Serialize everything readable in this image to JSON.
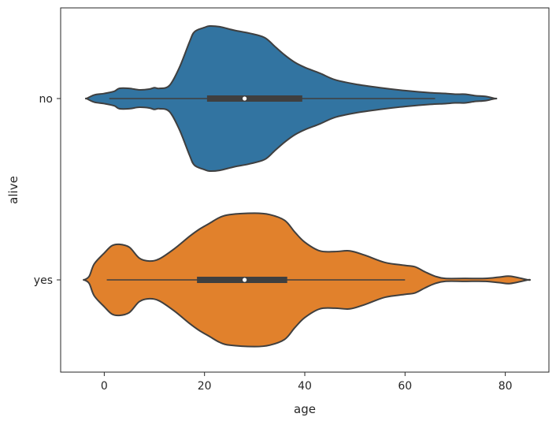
{
  "chart_data": {
    "type": "violin",
    "orientation": "horizontal",
    "title": "",
    "xlabel": "age",
    "ylabel": "alive",
    "xlim": [
      -8.7,
      88.7
    ],
    "xticks": [
      0,
      20,
      40,
      60,
      80
    ],
    "xtick_labels": [
      "0",
      "20",
      "40",
      "60",
      "80"
    ],
    "categories": [
      "no",
      "yes"
    ],
    "grid": false,
    "legend": "none",
    "series": [
      {
        "category": "no",
        "color": "#3274a1",
        "edge_color": "#3f3f3f",
        "box": {
          "whisker_low": 1,
          "q1": 20.5,
          "median": 28,
          "q3": 39.5,
          "whisker_high": 66
        },
        "density_range": [
          -3.5,
          78
        ],
        "density_profile": [
          [
            -3.5,
            0.0
          ],
          [
            -2,
            0.05
          ],
          [
            0,
            0.07
          ],
          [
            2,
            0.1
          ],
          [
            3,
            0.14
          ],
          [
            5,
            0.14
          ],
          [
            7,
            0.12
          ],
          [
            9,
            0.13
          ],
          [
            10,
            0.15
          ],
          [
            11,
            0.14
          ],
          [
            13,
            0.18
          ],
          [
            15,
            0.43
          ],
          [
            17,
            0.78
          ],
          [
            18,
            0.92
          ],
          [
            20,
            0.98
          ],
          [
            21,
            1.0
          ],
          [
            23,
            0.99
          ],
          [
            26,
            0.94
          ],
          [
            29,
            0.9
          ],
          [
            32,
            0.84
          ],
          [
            34,
            0.72
          ],
          [
            36,
            0.6
          ],
          [
            38,
            0.5
          ],
          [
            40,
            0.43
          ],
          [
            43,
            0.35
          ],
          [
            46,
            0.26
          ],
          [
            50,
            0.2
          ],
          [
            55,
            0.15
          ],
          [
            60,
            0.11
          ],
          [
            65,
            0.08
          ],
          [
            68,
            0.07
          ],
          [
            70,
            0.06
          ],
          [
            72,
            0.06
          ],
          [
            74,
            0.04
          ],
          [
            76,
            0.03
          ],
          [
            78,
            0.0
          ]
        ]
      },
      {
        "category": "yes",
        "color": "#e1812c",
        "edge_color": "#3f3f3f",
        "box": {
          "whisker_low": 0.5,
          "q1": 18.5,
          "median": 28,
          "q3": 36.5,
          "whisker_high": 60
        },
        "density_range": [
          -4,
          84.5
        ],
        "density_profile": [
          [
            -4,
            0.0
          ],
          [
            -3,
            0.05
          ],
          [
            -2,
            0.22
          ],
          [
            0,
            0.37
          ],
          [
            1.5,
            0.47
          ],
          [
            3,
            0.49
          ],
          [
            5,
            0.45
          ],
          [
            7,
            0.3
          ],
          [
            9,
            0.26
          ],
          [
            11,
            0.29
          ],
          [
            14,
            0.43
          ],
          [
            17,
            0.6
          ],
          [
            19,
            0.7
          ],
          [
            21,
            0.78
          ],
          [
            23,
            0.86
          ],
          [
            25,
            0.9
          ],
          [
            30,
            0.92
          ],
          [
            33,
            0.9
          ],
          [
            36,
            0.82
          ],
          [
            38,
            0.66
          ],
          [
            40,
            0.52
          ],
          [
            43,
            0.4
          ],
          [
            46,
            0.39
          ],
          [
            49,
            0.4
          ],
          [
            52,
            0.34
          ],
          [
            56,
            0.24
          ],
          [
            60,
            0.2
          ],
          [
            62,
            0.18
          ],
          [
            64,
            0.11
          ],
          [
            66,
            0.05
          ],
          [
            68,
            0.02
          ],
          [
            72,
            0.02
          ],
          [
            76,
            0.02
          ],
          [
            79,
            0.04
          ],
          [
            81,
            0.05
          ],
          [
            84.5,
            0.0
          ]
        ]
      }
    ]
  }
}
